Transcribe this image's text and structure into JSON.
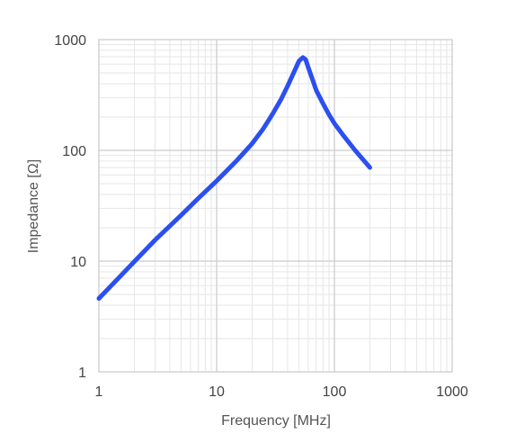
{
  "chart_data": {
    "type": "line",
    "title": "",
    "xlabel": "Frequency [MHz]",
    "ylabel": "Impedance [Ω]",
    "xscale": "log",
    "yscale": "log",
    "xlim": [
      1,
      1000
    ],
    "ylim": [
      1,
      1000
    ],
    "xticks": [
      "1",
      "10",
      "100",
      "1000"
    ],
    "yticks": [
      "1",
      "10",
      "100",
      "1000"
    ],
    "grid": true,
    "legend": "none",
    "series": [
      {
        "color": "#2b4ff0",
        "x": [
          1,
          1.5,
          2,
          3,
          5,
          7,
          10,
          15,
          20,
          25,
          30,
          35,
          40,
          45,
          50,
          54,
          57,
          60,
          65,
          70,
          80,
          90,
          100,
          120,
          150,
          200
        ],
        "y": [
          4.6,
          7.2,
          9.9,
          15.5,
          26,
          37,
          53,
          82,
          115,
          158,
          215,
          285,
          380,
          500,
          640,
          690,
          660,
          560,
          440,
          350,
          265,
          210,
          175,
          135,
          100,
          70
        ]
      }
    ]
  },
  "colors": {
    "line": "#2b4ff0",
    "major_grid": "#cccccc",
    "minor_grid": "#e6e6e6"
  }
}
